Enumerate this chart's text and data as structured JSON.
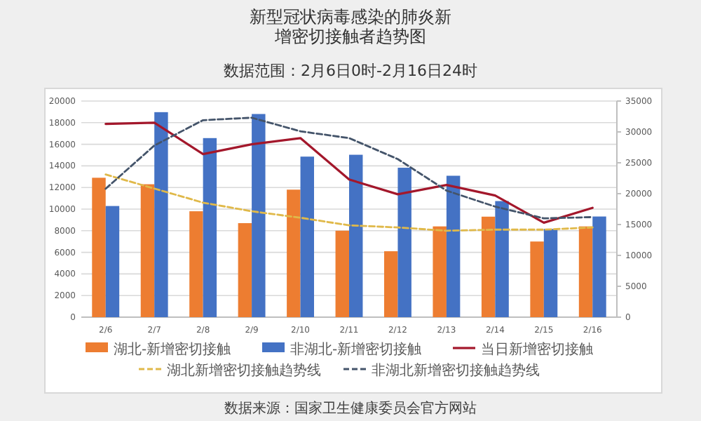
{
  "chart_data": {
    "type": "bar",
    "title": "新型冠状病毒感染的肺炎新增密切接触者趋势图",
    "subtitle": "数据范围：2月6日0时-2月16日24时",
    "categories": [
      "2/6",
      "2/7",
      "2/8",
      "2/9",
      "2/10",
      "2/11",
      "2/12",
      "2/13",
      "2/14",
      "2/15",
      "2/16"
    ],
    "series": [
      {
        "name": "湖北-新增密切接触",
        "color": "#ed7d31",
        "values": [
          12900,
          12300,
          9800,
          8700,
          11800,
          8000,
          6100,
          8400,
          9300,
          7000,
          8400
        ]
      },
      {
        "name": "非湖北-新增密切接触",
        "axis": "y2",
        "color": "#4472c4",
        "values": [
          18000,
          33200,
          29000,
          32900,
          26000,
          26300,
          24200,
          22900,
          18800,
          14300,
          16300
        ]
      },
      {
        "name": "当日新增密切接触",
        "type": "line",
        "axis": "y2",
        "color": "#a3172b",
        "values": [
          31300,
          31500,
          26400,
          28000,
          29000,
          22300,
          19900,
          21400,
          19700,
          15300,
          17700
        ]
      },
      {
        "name": "湖北新增密切接触趋势线",
        "type": "line",
        "line_style": "dashed",
        "color": "#e0b94a",
        "values": [
          13200,
          11900,
          10600,
          9800,
          9200,
          8500,
          8300,
          8000,
          8100,
          8100,
          8300
        ]
      },
      {
        "name": "非湖北新增密切接触趋势线",
        "type": "line",
        "axis": "y2",
        "line_style": "dashed",
        "color": "#44546a",
        "values": [
          20800,
          27800,
          31900,
          32300,
          30100,
          29000,
          25600,
          20500,
          17900,
          16000,
          16200
        ]
      }
    ],
    "ylim": [
      0,
      20000
    ],
    "yticks": [
      0,
      2000,
      4000,
      6000,
      8000,
      10000,
      12000,
      14000,
      16000,
      18000,
      20000
    ],
    "y2lim": [
      0,
      35000
    ],
    "y2ticks": [
      0,
      5000,
      10000,
      15000,
      20000,
      25000,
      30000,
      35000
    ],
    "grid": "y",
    "legend": "bottom",
    "annotations": [
      "数据来源：国家卫生健康委员会官方网站"
    ]
  }
}
